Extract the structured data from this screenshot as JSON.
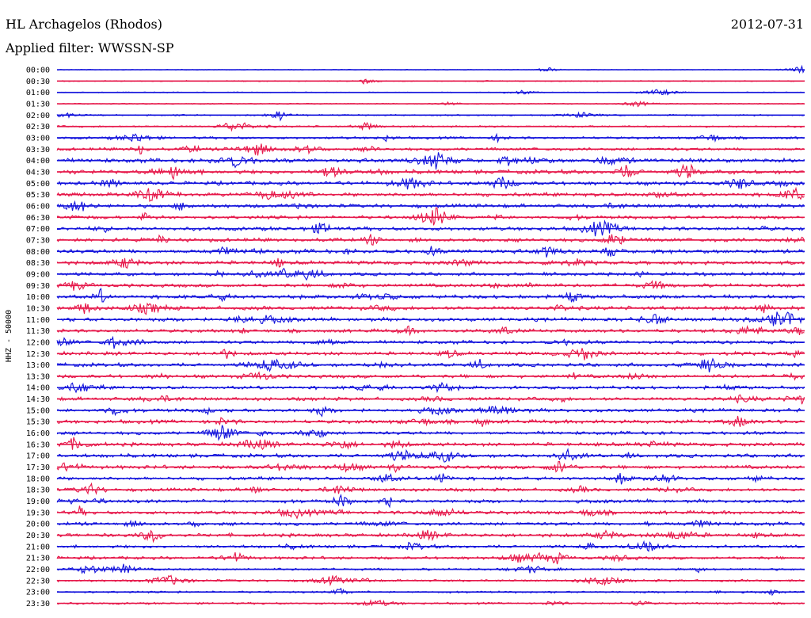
{
  "header": {
    "station": "HL Archagelos (Rhodos)",
    "date": "2012-07-31",
    "filter": "Applied filter: WWSSN-SP"
  },
  "chart_data": {
    "type": "line",
    "chart_kind": "helicorder",
    "ylabel": "HHZ - 50000",
    "colors": [
      "#1414dc",
      "#e6194b"
    ],
    "grid": false,
    "rows": [
      {
        "label": "00:00",
        "activity": 0.05
      },
      {
        "label": "00:30",
        "activity": 0.07
      },
      {
        "label": "01:00",
        "activity": 0.06
      },
      {
        "label": "01:30",
        "activity": 0.07
      },
      {
        "label": "02:00",
        "activity": 0.1
      },
      {
        "label": "02:30",
        "activity": 0.12
      },
      {
        "label": "03:00",
        "activity": 0.18
      },
      {
        "label": "03:30",
        "activity": 0.22
      },
      {
        "label": "04:00",
        "activity": 0.3
      },
      {
        "label": "04:30",
        "activity": 0.3
      },
      {
        "label": "05:00",
        "activity": 0.28
      },
      {
        "label": "05:30",
        "activity": 0.28
      },
      {
        "label": "06:00",
        "activity": 0.27
      },
      {
        "label": "06:30",
        "activity": 0.25
      },
      {
        "label": "07:00",
        "activity": 0.28
      },
      {
        "label": "07:30",
        "activity": 0.27
      },
      {
        "label": "08:00",
        "activity": 0.3
      },
      {
        "label": "08:30",
        "activity": 0.28
      },
      {
        "label": "09:00",
        "activity": 0.25
      },
      {
        "label": "09:30",
        "activity": 0.25
      },
      {
        "label": "10:00",
        "activity": 0.28
      },
      {
        "label": "10:30",
        "activity": 0.28
      },
      {
        "label": "11:00",
        "activity": 0.27
      },
      {
        "label": "11:30",
        "activity": 0.25
      },
      {
        "label": "12:00",
        "activity": 0.25
      },
      {
        "label": "12:30",
        "activity": 0.26
      },
      {
        "label": "13:00",
        "activity": 0.27
      },
      {
        "label": "13:30",
        "activity": 0.26
      },
      {
        "label": "14:00",
        "activity": 0.25
      },
      {
        "label": "14:30",
        "activity": 0.26
      },
      {
        "label": "15:00",
        "activity": 0.26
      },
      {
        "label": "15:30",
        "activity": 0.27
      },
      {
        "label": "16:00",
        "activity": 0.25
      },
      {
        "label": "16:30",
        "activity": 0.27
      },
      {
        "label": "17:00",
        "activity": 0.27
      },
      {
        "label": "17:30",
        "activity": 0.27
      },
      {
        "label": "18:00",
        "activity": 0.25
      },
      {
        "label": "18:30",
        "activity": 0.24
      },
      {
        "label": "19:00",
        "activity": 0.25
      },
      {
        "label": "19:30",
        "activity": 0.26
      },
      {
        "label": "20:00",
        "activity": 0.25
      },
      {
        "label": "20:30",
        "activity": 0.26
      },
      {
        "label": "21:00",
        "activity": 0.22
      },
      {
        "label": "21:30",
        "activity": 0.22
      },
      {
        "label": "22:00",
        "activity": 0.16
      },
      {
        "label": "22:30",
        "activity": 0.16
      },
      {
        "label": "23:00",
        "activity": 0.14
      },
      {
        "label": "23:30",
        "activity": 0.14
      }
    ]
  }
}
